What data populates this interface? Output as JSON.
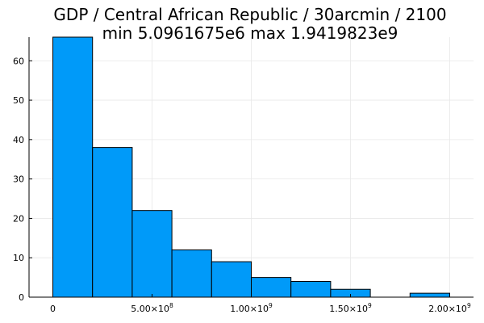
{
  "chart_data": {
    "type": "bar",
    "title": "GDP / Central African Republic / 30arcmin / 2100",
    "subtitle": "min 5.0961675e6  max 1.9419823e9",
    "xlabel": "",
    "ylabel": "",
    "bin_edges": [
      0,
      200000000,
      400000000,
      600000000,
      800000000,
      1000000000,
      1200000000,
      1400000000,
      1600000000,
      1800000000,
      2000000000
    ],
    "values": [
      66,
      38,
      22,
      12,
      9,
      5,
      4,
      2,
      0,
      1
    ],
    "xlim": [
      -120000000,
      2120000000
    ],
    "ylim": [
      0,
      66
    ],
    "x_ticks": [
      {
        "value": 0,
        "label": "0",
        "sup": ""
      },
      {
        "value": 500000000,
        "label": "5.00×10",
        "sup": "8"
      },
      {
        "value": 1000000000,
        "label": "1.00×10",
        "sup": "9"
      },
      {
        "value": 1500000000,
        "label": "1.50×10",
        "sup": "9"
      },
      {
        "value": 2000000000,
        "label": "2.00×10",
        "sup": "9"
      }
    ],
    "y_ticks": [
      0,
      10,
      20,
      30,
      40,
      50,
      60
    ],
    "grid": true,
    "bar_color": "#009af9",
    "edge_color": "#000000"
  }
}
